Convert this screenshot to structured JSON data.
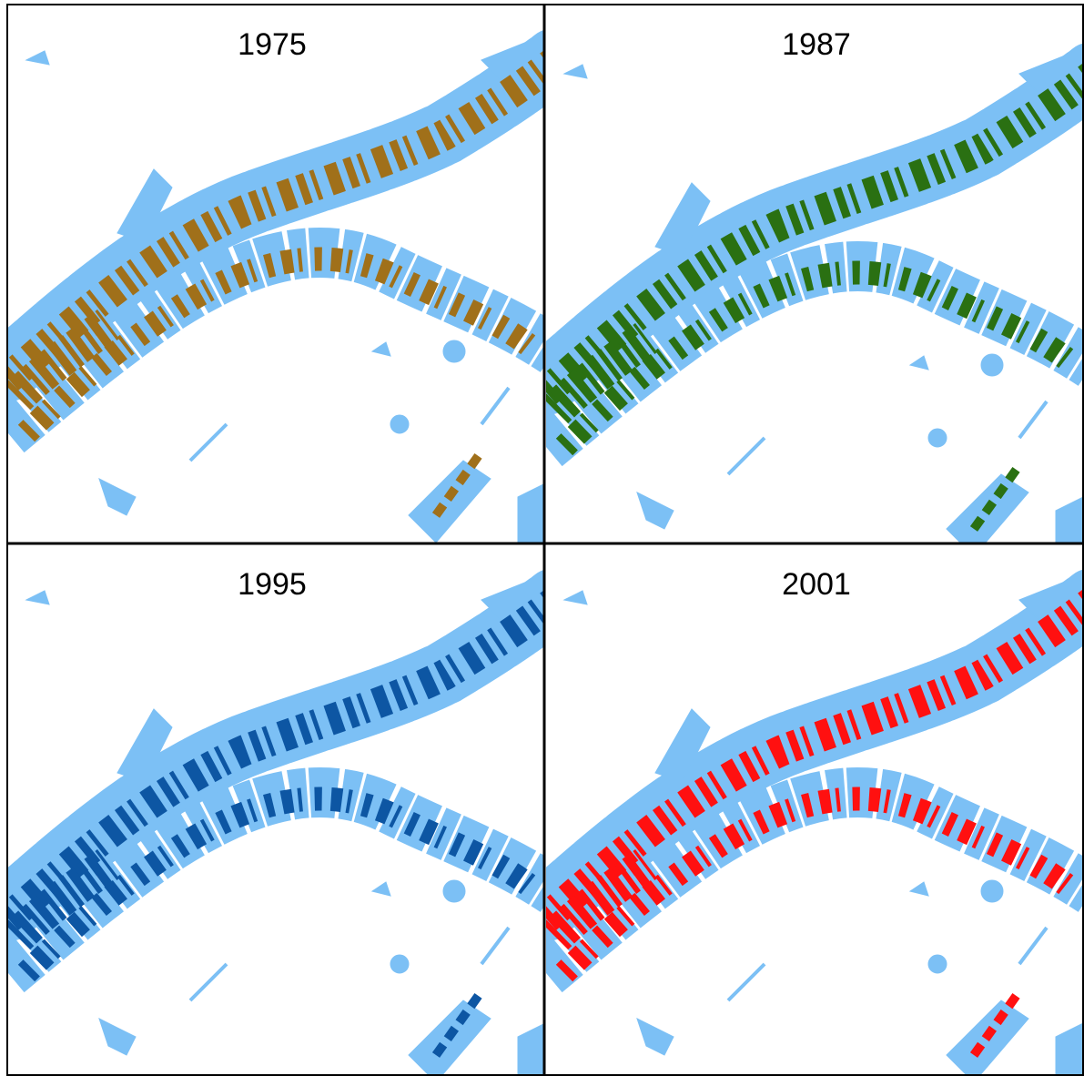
{
  "panels": [
    {
      "title": "1975",
      "color": "#a0701a"
    },
    {
      "title": "1987",
      "color": "#2a7012"
    },
    {
      "title": "1995",
      "color": "#0d56a3"
    },
    {
      "title": "2001",
      "color": "#ff1010"
    }
  ]
}
